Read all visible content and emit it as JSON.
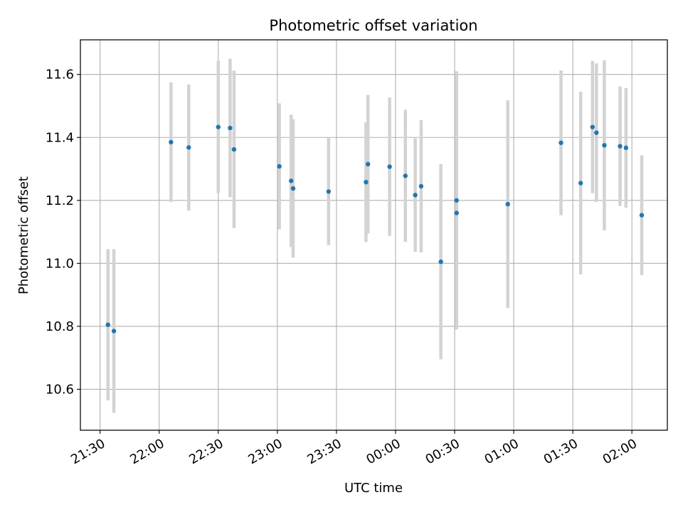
{
  "chart_data": {
    "type": "scatter",
    "title": "Photometric offset variation",
    "xlabel": "UTC time",
    "ylabel": "Photometric offset",
    "x_unit": "hh:mm (UTC)",
    "x_ticks": [
      "21:30",
      "22:00",
      "22:30",
      "23:00",
      "23:30",
      "00:00",
      "00:30",
      "01:00",
      "01:30",
      "02:00"
    ],
    "x_range": [
      "21:20",
      "02:18"
    ],
    "y_ticks": [
      10.6,
      10.8,
      11.0,
      11.2,
      11.4,
      11.6
    ],
    "ylim": [
      10.47,
      11.71
    ],
    "grid": true,
    "marker_color": "#1f77b4",
    "errorbar_color": "#d3d3d3",
    "points": [
      {
        "x": "21:34",
        "y": 10.805,
        "yerr": 0.24
      },
      {
        "x": "21:37",
        "y": 10.785,
        "yerr": 0.26
      },
      {
        "x": "22:06",
        "y": 11.385,
        "yerr": 0.19
      },
      {
        "x": "22:15",
        "y": 11.368,
        "yerr": 0.2
      },
      {
        "x": "22:30",
        "y": 11.433,
        "yerr": 0.21
      },
      {
        "x": "22:36",
        "y": 11.43,
        "yerr": 0.22
      },
      {
        "x": "22:38",
        "y": 11.362,
        "yerr": 0.25
      },
      {
        "x": "23:01",
        "y": 11.308,
        "yerr": 0.2
      },
      {
        "x": "23:07",
        "y": 11.262,
        "yerr": 0.21
      },
      {
        "x": "23:08",
        "y": 11.238,
        "yerr": 0.22
      },
      {
        "x": "23:26",
        "y": 11.228,
        "yerr": 0.17
      },
      {
        "x": "23:45",
        "y": 11.258,
        "yerr": 0.19
      },
      {
        "x": "23:46",
        "y": 11.315,
        "yerr": 0.22
      },
      {
        "x": "23:57",
        "y": 11.307,
        "yerr": 0.22
      },
      {
        "x": "00:05",
        "y": 11.278,
        "yerr": 0.21
      },
      {
        "x": "00:10",
        "y": 11.217,
        "yerr": 0.18
      },
      {
        "x": "00:13",
        "y": 11.245,
        "yerr": 0.21
      },
      {
        "x": "00:23",
        "y": 11.005,
        "yerr": 0.31
      },
      {
        "x": "00:31",
        "y": 11.16,
        "yerr": 0.36
      },
      {
        "x": "00:31",
        "y": 11.2,
        "yerr": 0.41
      },
      {
        "x": "00:57",
        "y": 11.188,
        "yerr": 0.33
      },
      {
        "x": "01:24",
        "y": 11.383,
        "yerr": 0.23
      },
      {
        "x": "01:34",
        "y": 11.255,
        "yerr": 0.29
      },
      {
        "x": "01:40",
        "y": 11.433,
        "yerr": 0.21
      },
      {
        "x": "01:42",
        "y": 11.415,
        "yerr": 0.22
      },
      {
        "x": "01:46",
        "y": 11.375,
        "yerr": 0.27
      },
      {
        "x": "01:54",
        "y": 11.372,
        "yerr": 0.19
      },
      {
        "x": "01:57",
        "y": 11.367,
        "yerr": 0.19
      },
      {
        "x": "02:05",
        "y": 11.153,
        "yerr": 0.19
      }
    ]
  }
}
